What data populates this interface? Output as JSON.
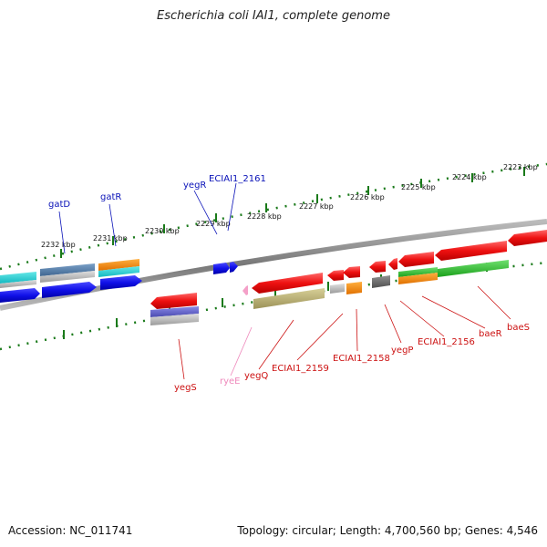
{
  "title": "Escherichia coli IAI1, complete genome",
  "footer": {
    "accession": "Accession: NC_011741",
    "topology": "Topology: circular; Length: 4,700,560 bp; Genes: 4,546"
  },
  "colors": {
    "forward_label": "#0a12b8",
    "reverse_label": "#cc1111",
    "rna_label": "#ee88bb",
    "tick": "#1a7a1a",
    "backbone": "#888888"
  },
  "scale_labels": [
    "2232 kbp",
    "2231 kbp",
    "2230 kbp",
    "2229 kbp",
    "2228 kbp",
    "2227 kbp",
    "2226 kbp",
    "2225 kbp",
    "2224 kbp",
    "2223 kbp"
  ],
  "forward_genes": [
    {
      "name": "gatD",
      "color": "blue"
    },
    {
      "name": "gatR",
      "color": "blue"
    },
    {
      "name": "yegR",
      "color": "blue"
    },
    {
      "name": "ECIAI1_2161",
      "color": "blue"
    }
  ],
  "reverse_genes": [
    {
      "name": "yegS",
      "color": "red"
    },
    {
      "name": "ryeE",
      "color": "pink"
    },
    {
      "name": "yegQ",
      "color": "red"
    },
    {
      "name": "ECIAI1_2159",
      "color": "red"
    },
    {
      "name": "ECIAI1_2158",
      "color": "red"
    },
    {
      "name": "yegP",
      "color": "red"
    },
    {
      "name": "ECIAI1_2156",
      "color": "red"
    },
    {
      "name": "baeR",
      "color": "red"
    },
    {
      "name": "baeS",
      "color": "red"
    }
  ]
}
